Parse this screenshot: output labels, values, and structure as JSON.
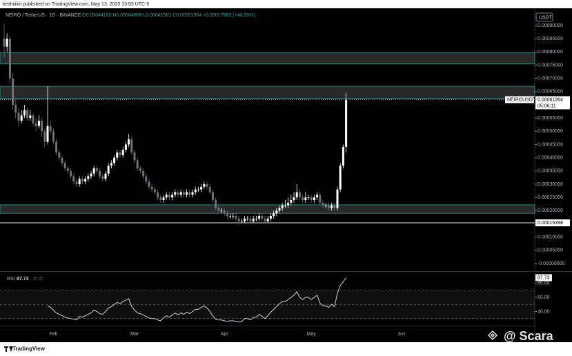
{
  "chart_data": {
    "type": "candlestick",
    "published": "keshiiiiiiii published on TradingView.com, May 13, 2025 13:53 UTC-5",
    "symbol_line": "NEIRO / TetherUS · 1D · BINANCE",
    "ohlc_line": "O0.00044105 H0.00064608 L0.00041981 C0.00061964 +0.00017863 (+40.50%)",
    "currency": "USDT",
    "symbol_tag": "NEIROUSDT",
    "countdown": "05:06:11",
    "brand": "TradingView",
    "watermark": "@ Scara",
    "up_color": "#ffffff",
    "down_color": "#6f7178",
    "zone_color": "#26a69a",
    "ylim": [
      -2.6e-05,
      0.000965
    ],
    "yticks": [
      {
        "value": 0.0009,
        "label": "0.00090000"
      },
      {
        "value": 0.00085,
        "label": "0.00085000"
      },
      {
        "value": 0.0008,
        "label": "0.00080000"
      },
      {
        "value": 0.00075,
        "label": "0.00075000"
      },
      {
        "value": 0.0007,
        "label": "0.00070000"
      },
      {
        "value": 0.00065,
        "label": "0.00065000"
      },
      {
        "value": 0.00055,
        "label": "0.00055000"
      },
      {
        "value": 0.0005,
        "label": "0.00050000"
      },
      {
        "value": 0.00045,
        "label": "0.00045000"
      },
      {
        "value": 0.0004,
        "label": "0.00040000"
      },
      {
        "value": 0.00035,
        "label": "0.00035000"
      },
      {
        "value": 0.0003,
        "label": "0.00030000"
      },
      {
        "value": 0.00025,
        "label": "0.00025000"
      },
      {
        "value": 0.0002,
        "label": "0.00020000"
      },
      {
        "value": 0.0001,
        "label": "0.00010000"
      },
      {
        "value": 5e-05,
        "label": "0.00005000"
      },
      {
        "value": 0,
        "label": "-0.00000000"
      }
    ],
    "zones": [
      [
        0.000755,
        0.000798
      ],
      [
        0.000625,
        0.00067
      ],
      [
        0.00019,
        0.000222
      ]
    ],
    "low_line": 0.00015398,
    "categories": [
      null,
      null,
      null,
      null,
      null,
      null,
      null,
      null,
      null,
      null,
      null,
      null,
      null,
      null,
      null,
      null,
      null,
      "Feb",
      null,
      null,
      null,
      null,
      null,
      null,
      null,
      null,
      null,
      null,
      null,
      null,
      null,
      null,
      null,
      null,
      null,
      null,
      null,
      null,
      null,
      null,
      null,
      null,
      null,
      null,
      null,
      "Mar",
      null,
      null,
      null,
      null,
      null,
      null,
      null,
      null,
      null,
      null,
      null,
      null,
      null,
      null,
      null,
      null,
      null,
      null,
      null,
      null,
      null,
      null,
      null,
      null,
      null,
      null,
      null,
      null,
      null,
      null,
      "Apr",
      null,
      null,
      null,
      null,
      null,
      null,
      null,
      null,
      null,
      null,
      null,
      null,
      null,
      null,
      null,
      null,
      null,
      null,
      null,
      null,
      null,
      null,
      null,
      null,
      null,
      null,
      null,
      null,
      null,
      "May",
      null,
      null,
      null,
      null,
      null,
      null,
      null,
      null,
      null,
      null,
      null,
      null,
      null,
      null,
      null,
      null,
      null,
      null,
      null,
      null,
      null,
      null,
      null,
      null,
      null,
      null,
      null,
      null,
      null,
      null,
      "Jun"
    ],
    "candles": [
      [
        0.00085,
        0.000905,
        0.00078,
        0.00082
      ],
      [
        0.00082,
        0.00087,
        0.0008,
        0.00085
      ],
      [
        0.00085,
        0.00086,
        0.00068,
        0.0007
      ],
      [
        0.0007,
        0.00072,
        0.00058,
        0.0006
      ],
      [
        0.0006,
        0.00062,
        0.00055,
        0.00057
      ],
      [
        0.00057,
        0.00059,
        0.00052,
        0.00054
      ],
      [
        0.00054,
        0.00058,
        0.00053,
        0.00056
      ],
      [
        0.00056,
        0.0006,
        0.00055,
        0.00058
      ],
      [
        0.00058,
        0.00059,
        0.00054,
        0.00055
      ],
      [
        0.00055,
        0.00058,
        0.00054,
        0.00056
      ],
      [
        0.00056,
        0.00057,
        0.00052,
        0.00053
      ],
      [
        0.00053,
        0.00055,
        0.0005,
        0.00052
      ],
      [
        0.00052,
        0.00056,
        0.00051,
        0.00054
      ],
      [
        0.00054,
        0.00055,
        0.00048,
        0.0005
      ],
      [
        0.0005,
        0.00051,
        0.00044,
        0.00046
      ],
      [
        0.00046,
        0.00067,
        0.00045,
        0.00052
      ],
      [
        0.00052,
        0.00054,
        0.00049,
        0.0005
      ],
      [
        0.0005,
        0.00051,
        0.00045,
        0.00046
      ],
      [
        0.00046,
        0.00047,
        0.00041,
        0.00042
      ],
      [
        0.00042,
        0.00043,
        0.00039,
        0.0004
      ],
      [
        0.0004,
        0.00041,
        0.00037,
        0.00038
      ],
      [
        0.00038,
        0.00039,
        0.00035,
        0.00036
      ],
      [
        0.00036,
        0.00037,
        0.00034,
        0.00035
      ],
      [
        0.00035,
        0.00036,
        0.00032,
        0.00033
      ],
      [
        0.00033,
        0.00034,
        0.0003,
        0.00031
      ],
      [
        0.00031,
        0.00032,
        0.00029,
        0.0003
      ],
      [
        0.0003,
        0.00033,
        0.00029,
        0.00032
      ],
      [
        0.00032,
        0.00033,
        0.0003,
        0.00031
      ],
      [
        0.00031,
        0.00033,
        0.0003,
        0.00032
      ],
      [
        0.00032,
        0.00034,
        0.00031,
        0.00033
      ],
      [
        0.00033,
        0.00035,
        0.00032,
        0.00034
      ],
      [
        0.00034,
        0.00037,
        0.00033,
        0.00036
      ],
      [
        0.00036,
        0.00037,
        0.00034,
        0.00035
      ],
      [
        0.00035,
        0.00036,
        0.00032,
        0.00033
      ],
      [
        0.00033,
        0.00034,
        0.00031,
        0.00032
      ],
      [
        0.00032,
        0.00035,
        0.00031,
        0.00034
      ],
      [
        0.00034,
        0.00038,
        0.00033,
        0.00037
      ],
      [
        0.00037,
        0.00039,
        0.00036,
        0.00038
      ],
      [
        0.00038,
        0.00041,
        0.00037,
        0.0004
      ],
      [
        0.0004,
        0.00043,
        0.00039,
        0.00042
      ],
      [
        0.00042,
        0.00043,
        0.0004,
        0.00041
      ],
      [
        0.00041,
        0.00044,
        0.0004,
        0.00043
      ],
      [
        0.00043,
        0.00046,
        0.00042,
        0.00045
      ],
      [
        0.00045,
        0.00049,
        0.00044,
        0.00047
      ],
      [
        0.00047,
        0.00048,
        0.00041,
        0.00042
      ],
      [
        0.00042,
        0.00043,
        0.00038,
        0.00039
      ],
      [
        0.00039,
        0.0004,
        0.00035,
        0.00036
      ],
      [
        0.00036,
        0.00037,
        0.00034,
        0.00035
      ],
      [
        0.00035,
        0.00036,
        0.00032,
        0.00033
      ],
      [
        0.00033,
        0.00034,
        0.0003,
        0.00031
      ],
      [
        0.00031,
        0.00032,
        0.00028,
        0.00029
      ],
      [
        0.00029,
        0.0003,
        0.00027,
        0.00028
      ],
      [
        0.00028,
        0.00029,
        0.00026,
        0.00027
      ],
      [
        0.00027,
        0.00028,
        0.00024,
        0.00025
      ],
      [
        0.00025,
        0.00026,
        0.00023,
        0.00024
      ],
      [
        0.00024,
        0.00026,
        0.00023,
        0.00025
      ],
      [
        0.00025,
        0.00027,
        0.00024,
        0.00026
      ],
      [
        0.00026,
        0.00027,
        0.00024,
        0.00025
      ],
      [
        0.00025,
        0.00027,
        0.00024,
        0.00026
      ],
      [
        0.00026,
        0.00028,
        0.00025,
        0.00027
      ],
      [
        0.00027,
        0.00028,
        0.00025,
        0.00026
      ],
      [
        0.00026,
        0.00028,
        0.00025,
        0.00027
      ],
      [
        0.00027,
        0.00028,
        0.00025,
        0.00026
      ],
      [
        0.00026,
        0.00028,
        0.00025,
        0.00027
      ],
      [
        0.00027,
        0.00028,
        0.00025,
        0.00026
      ],
      [
        0.00026,
        0.00028,
        0.00025,
        0.00027
      ],
      [
        0.00027,
        0.00029,
        0.00026,
        0.00028
      ],
      [
        0.00028,
        0.00029,
        0.00027,
        0.00028
      ],
      [
        0.00028,
        0.0003,
        0.00027,
        0.00029
      ],
      [
        0.00029,
        0.00031,
        0.00028,
        0.0003
      ],
      [
        0.0003,
        0.00031,
        0.00028,
        0.00029
      ],
      [
        0.00029,
        0.0003,
        0.00026,
        0.00027
      ],
      [
        0.00027,
        0.00028,
        0.00023,
        0.00024
      ],
      [
        0.00024,
        0.00025,
        0.0002,
        0.00021
      ],
      [
        0.00021,
        0.00022,
        0.00019,
        0.0002
      ],
      [
        0.0002,
        0.00021,
        0.00019,
        0.0002
      ],
      [
        0.0002,
        0.00021,
        0.00018,
        0.00019
      ],
      [
        0.00019,
        0.0002,
        0.00017,
        0.00018
      ],
      [
        0.00018,
        0.00019,
        0.00017,
        0.00018
      ],
      [
        0.00018,
        0.00019,
        0.00017,
        0.00018
      ],
      [
        0.00018,
        0.00019,
        0.00016,
        0.00017
      ],
      [
        0.00017,
        0.00018,
        0.00015398,
        0.00016
      ],
      [
        0.00016,
        0.00017,
        0.000155,
        0.00016
      ],
      [
        0.00016,
        0.00018,
        0.000155,
        0.00017
      ],
      [
        0.00017,
        0.00018,
        0.00016,
        0.00017
      ],
      [
        0.00017,
        0.00018,
        0.000155,
        0.00016
      ],
      [
        0.00016,
        0.00018,
        0.000155,
        0.00017
      ],
      [
        0.00017,
        0.00018,
        0.00016,
        0.00017
      ],
      [
        0.00017,
        0.00019,
        0.00016,
        0.00018
      ],
      [
        0.00018,
        0.00019,
        0.00016,
        0.00017
      ],
      [
        0.00017,
        0.00018,
        0.000155,
        0.00016
      ],
      [
        0.00016,
        0.00018,
        0.000155,
        0.00017
      ],
      [
        0.00017,
        0.00019,
        0.00016,
        0.00018
      ],
      [
        0.00018,
        0.0002,
        0.00017,
        0.00019
      ],
      [
        0.00019,
        0.00021,
        0.00018,
        0.0002
      ],
      [
        0.0002,
        0.00022,
        0.00019,
        0.00021
      ],
      [
        0.00021,
        0.00023,
        0.0002,
        0.00022
      ],
      [
        0.00022,
        0.00024,
        0.00021,
        0.00022
      ],
      [
        0.00022,
        0.00025,
        0.00021,
        0.00023
      ],
      [
        0.00023,
        0.00026,
        0.00022,
        0.00024
      ],
      [
        0.00024,
        0.00027,
        0.00023,
        0.00025
      ],
      [
        0.00025,
        0.0003,
        0.00024,
        0.00027
      ],
      [
        0.00027,
        0.00028,
        0.00024,
        0.00025
      ],
      [
        0.00025,
        0.00026,
        0.00023,
        0.00024
      ],
      [
        0.00024,
        0.00027,
        0.00023,
        0.00025
      ],
      [
        0.00025,
        0.00026,
        0.00024,
        0.00025
      ],
      [
        0.00025,
        0.00026,
        0.00023,
        0.00024
      ],
      [
        0.00024,
        0.00026,
        0.00023,
        0.00025
      ],
      [
        0.00025,
        0.00027,
        0.00024,
        0.00026
      ],
      [
        0.00026,
        0.00027,
        0.00022,
        0.00023
      ],
      [
        0.00023,
        0.00024,
        0.00021,
        0.00022
      ],
      [
        0.00022,
        0.00023,
        0.00021,
        0.00022
      ],
      [
        0.00022,
        0.00023,
        0.0002,
        0.00021
      ],
      [
        0.00021,
        0.00023,
        0.0002,
        0.00022
      ],
      [
        0.00022,
        0.00023,
        0.0002,
        0.00021
      ],
      [
        0.00021,
        0.00029,
        0.0002,
        0.00028
      ],
      [
        0.00028,
        0.00038,
        0.00027,
        0.00037
      ],
      [
        0.00037,
        0.00045,
        0.00036,
        0.00044105
      ],
      [
        0.00044105,
        0.00064608,
        0.00041981,
        0.00061964
      ],
      null,
      null,
      null,
      null,
      null,
      null,
      null,
      null,
      null,
      null,
      null,
      null,
      null,
      null,
      null,
      null,
      null,
      null,
      null
    ],
    "rsi_label": "RSI",
    "rsi_params": "∅ ∅",
    "rsi_color": "#d1d4dc",
    "rsi_ylim": [
      22,
      96
    ],
    "rsi_yticks": [
      {
        "value": 80,
        "label": "80.00"
      },
      {
        "value": 60,
        "label": "60.00"
      },
      {
        "value": 40,
        "label": "40.00"
      }
    ],
    "rsi_levels": [
      70,
      50,
      30
    ],
    "rsi": [
      null,
      null,
      null,
      null,
      null,
      null,
      null,
      null,
      null,
      null,
      null,
      null,
      null,
      null,
      null,
      48,
      46,
      42,
      38,
      36,
      34,
      32,
      31,
      30,
      29,
      28,
      33,
      32,
      34,
      36,
      38,
      42,
      40,
      37,
      36,
      40,
      45,
      47,
      50,
      53,
      51,
      54,
      56,
      58,
      47,
      42,
      38,
      37,
      35,
      33,
      31,
      30,
      30,
      28,
      27,
      31,
      34,
      32,
      35,
      38,
      35,
      38,
      36,
      39,
      37,
      40,
      43,
      43,
      46,
      48,
      45,
      40,
      34,
      29,
      28,
      28,
      27,
      26,
      27,
      27,
      26,
      25,
      26,
      30,
      30,
      28,
      32,
      32,
      36,
      33,
      30,
      34,
      39,
      43,
      47,
      51,
      54,
      54,
      57,
      60,
      63,
      68,
      60,
      57,
      60,
      60,
      57,
      60,
      63,
      52,
      48,
      48,
      46,
      50,
      47,
      66,
      77,
      82,
      87.73,
      null,
      null,
      null,
      null,
      null,
      null,
      null,
      null,
      null,
      null,
      null,
      null,
      null,
      null,
      null,
      null,
      null,
      null,
      null
    ]
  }
}
